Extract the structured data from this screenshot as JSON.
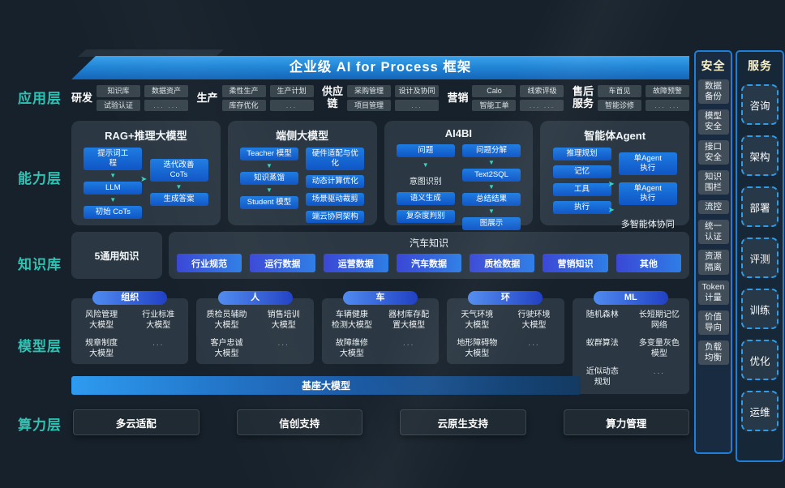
{
  "title": "企业级 AI for Process 框架",
  "colors": {
    "background": "#17212b",
    "layer_label_teal": "#2cc4b4",
    "banner_blue": "#2286d6",
    "pill_blue": "#1668d8",
    "knowledge_pill_gradient": [
      "#3a47d6",
      "#2e7ee6"
    ],
    "arrow_teal": "#35d4c0",
    "side_title_yellow": "#fdf3c7",
    "side_border_blue": "#1f7fd8"
  },
  "layer_labels": [
    "应用层",
    "能力层",
    "知识库",
    "模型层",
    "算力层"
  ],
  "app_layer": {
    "groups": [
      {
        "name": "研发",
        "chips": [
          [
            "知识库",
            "试验认证"
          ],
          [
            "数据资产",
            "... ..."
          ]
        ]
      },
      {
        "name": "生产",
        "chips": [
          [
            "柔性生产",
            "库存优化"
          ],
          [
            "生产计划",
            "..."
          ]
        ]
      },
      {
        "name": "供应\n链",
        "chips": [
          [
            "采购管理",
            "项目管理"
          ],
          [
            "设计及协同",
            "..."
          ]
        ]
      },
      {
        "name": "营销",
        "chips": [
          [
            "Calo",
            "智能工单"
          ],
          [
            "线索评级",
            "... ..."
          ]
        ]
      },
      {
        "name": "售后\n服务",
        "chips": [
          [
            "车首见",
            "智能诊修"
          ],
          [
            "故障预警",
            "... ..."
          ]
        ]
      }
    ]
  },
  "capability_layer": {
    "boxes": [
      {
        "title": "RAG+推理大模型",
        "cols": [
          {
            "items": [
              {
                "t": "提示词工\n程",
                "pill": true,
                "arrow": true
              },
              {
                "t": "LLM",
                "pill": true,
                "arrow": true
              },
              {
                "t": "初始 CoTs",
                "pill": true
              }
            ]
          },
          {
            "items": [
              {
                "t": "迭代改善\nCoTs",
                "pill": true,
                "arrow": true
              },
              {
                "t": "生成答案",
                "pill": true
              }
            ]
          }
        ]
      },
      {
        "title": "端侧大模型",
        "cols": [
          {
            "items": [
              {
                "t": "Teacher 模型",
                "pill": true,
                "arrow": true
              },
              {
                "t": "知识蒸馏",
                "pill": true,
                "arrow": true
              },
              {
                "t": "Student 模型",
                "pill": true
              }
            ]
          },
          {
            "items": [
              {
                "t": "硬件适配与优\n化",
                "pill": true
              },
              {
                "t": "动态计算优化",
                "pill": true
              },
              {
                "t": "场景驱动裁剪",
                "pill": true
              },
              {
                "t": "端云协同架构",
                "pill": true
              }
            ]
          }
        ]
      },
      {
        "title": "AI4BI",
        "cols": [
          {
            "items": [
              {
                "t": "问题",
                "pill": true,
                "arrow": true
              },
              {
                "t": "意图识别",
                "pill": false
              },
              {
                "t": "语义生成",
                "pill": true
              },
              {
                "t": "复杂度判别",
                "pill": true
              }
            ]
          },
          {
            "items": [
              {
                "t": "问题分解",
                "pill": true,
                "arrow": true
              },
              {
                "t": "Text2SQL",
                "pill": true,
                "arrow": true
              },
              {
                "t": "总结结果",
                "pill": true,
                "arrow": true
              },
              {
                "t": "图展示",
                "pill": true
              }
            ]
          }
        ]
      },
      {
        "title": "智能体Agent",
        "cols": [
          {
            "items": [
              {
                "t": "推理规划",
                "pill": true
              },
              {
                "t": "记忆",
                "pill": true
              },
              {
                "t": "工具",
                "pill": true
              },
              {
                "t": "执行",
                "pill": true
              }
            ]
          },
          {
            "items": [
              {
                "t": "单Agent\n执行",
                "pill": true
              },
              {
                "t": "单Agent\n执行",
                "pill": true
              }
            ],
            "caption": "多智能体协同"
          }
        ]
      }
    ]
  },
  "knowledge_layer": {
    "general_label": "5通用知识",
    "auto_title": "汽车知识",
    "pills": [
      "行业规范",
      "运行数据",
      "运营数据",
      "汽车数据",
      "质检数据",
      "营销知识",
      "其他"
    ]
  },
  "model_layer": {
    "groups": [
      {
        "name": "组织",
        "models": [
          "风险管理\n大模型",
          "行业标准\n大模型",
          "规章制度\n大模型",
          "..."
        ]
      },
      {
        "name": "人",
        "models": [
          "质检员辅助\n大模型",
          "销售培训\n大模型",
          "客户忠诚\n大模型",
          "..."
        ]
      },
      {
        "name": "车",
        "models": [
          "车辆健康\n检测大模型",
          "器材库存配\n置大模型",
          "故障维修\n大模型",
          "..."
        ]
      },
      {
        "name": "环",
        "models": [
          "天气环境\n大模型",
          "行驶环境\n大模型",
          "地形障碍物\n大模型",
          "..."
        ]
      },
      {
        "name": "ML",
        "models": [
          "随机森林",
          "长短期记忆\n网络",
          "蚁群算法",
          "多变量灰色\n模型",
          "近似动态\n规划",
          "..."
        ]
      }
    ],
    "foundation_label": "基座大模型"
  },
  "compute_layer": {
    "items": [
      "多云适配",
      "信创支持",
      "云原生支持",
      "算力管理"
    ]
  },
  "security_column": {
    "title": "安全",
    "items": [
      "数据\n备份",
      "模型\n安全",
      "接口\n安全",
      "知识\n围栏",
      "流控",
      "统一\n认证",
      "资源\n隔离",
      "Token\n计量",
      "价值\n导向",
      "负载\n均衡"
    ]
  },
  "service_column": {
    "title": "服务",
    "items": [
      "咨询",
      "架构",
      "部署",
      "评测",
      "训练",
      "优化",
      "运维"
    ]
  }
}
